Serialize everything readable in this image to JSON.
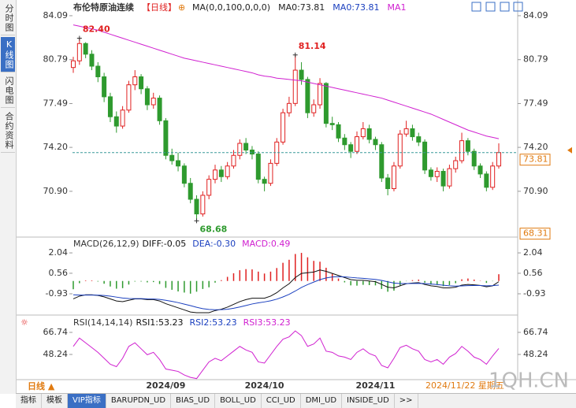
{
  "header": {
    "title": "布伦特原油连续",
    "period": "【日线】",
    "icon": "⊕",
    "texts": [
      {
        "text": "MA(0,0,100,0,0,0)",
        "color": "#222222"
      },
      {
        "text": "MA0:73.81",
        "color": "#222222"
      },
      {
        "text": "MA0:73.81",
        "color": "#1a3fbf"
      },
      {
        "text": "MA1",
        "color": "#d020d0"
      }
    ]
  },
  "sidebar": [
    "分时图",
    "K线图",
    "闪电图",
    "合约资料"
  ],
  "sidebar_active": "K线图",
  "chart_data": [
    {
      "type": "candlestick",
      "categories": [
        null,
        null,
        null,
        null,
        null,
        null,
        null,
        null,
        null,
        null,
        null,
        null,
        null,
        null,
        null,
        "2024/09",
        null,
        null,
        null,
        null,
        null,
        null,
        null,
        null,
        null,
        null,
        null,
        null,
        null,
        null,
        null,
        "2024/10",
        null,
        null,
        null,
        null,
        null,
        null,
        null,
        null,
        null,
        null,
        null,
        null,
        null,
        null,
        null,
        null,
        null,
        "2024/11",
        null,
        null,
        null,
        null,
        null,
        null,
        null,
        null,
        null,
        null,
        null,
        null,
        null,
        null,
        null,
        null,
        null,
        null,
        null,
        null
      ],
      "ohlc": [
        [
          80.2,
          81.0,
          79.8,
          80.7
        ],
        [
          80.7,
          82.4,
          80.4,
          82.0
        ],
        [
          82.0,
          82.1,
          80.9,
          81.2
        ],
        [
          81.2,
          81.5,
          80.0,
          80.3
        ],
        [
          80.3,
          80.6,
          79.1,
          79.5
        ],
        [
          79.5,
          79.8,
          77.6,
          78.0
        ],
        [
          78.0,
          78.3,
          76.1,
          76.5
        ],
        [
          76.5,
          76.9,
          75.3,
          75.8
        ],
        [
          75.8,
          77.3,
          75.6,
          77.0
        ],
        [
          77.0,
          79.2,
          76.8,
          78.9
        ],
        [
          78.9,
          80.0,
          78.5,
          79.5
        ],
        [
          79.5,
          79.7,
          78.2,
          78.6
        ],
        [
          78.6,
          78.8,
          77.0,
          77.4
        ],
        [
          77.4,
          78.3,
          77.1,
          77.9
        ],
        [
          77.9,
          78.1,
          75.9,
          76.2
        ],
        [
          76.2,
          76.4,
          73.3,
          73.6
        ],
        [
          73.6,
          74.1,
          72.9,
          73.2
        ],
        [
          73.2,
          73.8,
          72.4,
          72.8
        ],
        [
          72.8,
          73.0,
          71.2,
          71.5
        ],
        [
          71.5,
          71.9,
          70.0,
          70.3
        ],
        [
          70.3,
          70.6,
          68.68,
          69.2
        ],
        [
          69.2,
          70.9,
          69.0,
          70.6
        ],
        [
          70.6,
          72.1,
          70.3,
          71.8
        ],
        [
          71.8,
          72.9,
          71.5,
          72.5
        ],
        [
          72.5,
          72.8,
          71.6,
          72.0
        ],
        [
          72.0,
          73.1,
          71.8,
          72.8
        ],
        [
          72.8,
          74.0,
          72.6,
          73.6
        ],
        [
          73.6,
          74.8,
          73.3,
          74.5
        ],
        [
          74.5,
          74.9,
          73.7,
          74.0
        ],
        [
          74.0,
          74.3,
          73.3,
          73.7
        ],
        [
          73.7,
          73.9,
          71.5,
          71.8
        ],
        [
          71.8,
          72.0,
          70.9,
          71.5
        ],
        [
          71.5,
          73.3,
          71.3,
          73.0
        ],
        [
          73.0,
          74.9,
          72.8,
          74.6
        ],
        [
          74.6,
          77.1,
          74.4,
          76.8
        ],
        [
          76.8,
          78.0,
          76.5,
          77.5
        ],
        [
          77.5,
          81.14,
          77.3,
          80.0
        ],
        [
          80.0,
          80.6,
          78.9,
          79.3
        ],
        [
          79.3,
          79.5,
          76.4,
          76.8
        ],
        [
          76.8,
          77.8,
          76.5,
          77.4
        ],
        [
          77.4,
          79.4,
          77.1,
          79.0
        ],
        [
          79.0,
          79.1,
          75.7,
          76.0
        ],
        [
          76.0,
          76.5,
          75.5,
          75.9
        ],
        [
          75.9,
          76.1,
          74.6,
          74.9
        ],
        [
          74.9,
          75.2,
          74.0,
          74.4
        ],
        [
          74.4,
          74.6,
          73.4,
          73.9
        ],
        [
          73.9,
          75.4,
          73.7,
          75.0
        ],
        [
          75.0,
          76.1,
          74.8,
          75.6
        ],
        [
          75.6,
          75.9,
          74.5,
          74.8
        ],
        [
          74.8,
          75.0,
          74.0,
          74.4
        ],
        [
          74.4,
          74.6,
          71.6,
          71.9
        ],
        [
          71.9,
          72.2,
          70.6,
          71.1
        ],
        [
          71.1,
          73.1,
          70.9,
          72.8
        ],
        [
          72.8,
          75.5,
          72.6,
          75.2
        ],
        [
          75.2,
          76.2,
          75.0,
          75.6
        ],
        [
          75.6,
          75.9,
          74.7,
          75.0
        ],
        [
          75.0,
          75.3,
          74.3,
          74.6
        ],
        [
          74.6,
          74.8,
          72.2,
          72.5
        ],
        [
          72.5,
          72.7,
          71.7,
          72.0
        ],
        [
          72.0,
          72.7,
          71.6,
          72.4
        ],
        [
          72.4,
          72.6,
          70.9,
          71.3
        ],
        [
          71.3,
          72.9,
          71.1,
          72.6
        ],
        [
          72.6,
          73.5,
          72.3,
          73.2
        ],
        [
          73.2,
          75.3,
          73.0,
          74.7
        ],
        [
          74.7,
          74.9,
          73.6,
          73.9
        ],
        [
          73.9,
          74.1,
          72.5,
          72.8
        ],
        [
          72.8,
          73.0,
          71.9,
          72.2
        ],
        [
          72.2,
          72.4,
          70.9,
          71.2
        ],
        [
          71.2,
          73.1,
          71.0,
          72.8
        ],
        [
          72.8,
          74.5,
          72.6,
          73.81
        ]
      ],
      "up_color": "#e02020",
      "down_color": "#2e9a2e",
      "ma": {
        "name": "MA1",
        "color": "#d020d0",
        "values": [
          83.4,
          83.3,
          83.2,
          83.1,
          83.0,
          82.85,
          82.7,
          82.55,
          82.4,
          82.25,
          82.1,
          81.95,
          81.8,
          81.65,
          81.5,
          81.35,
          81.2,
          81.05,
          80.9,
          80.8,
          80.7,
          80.6,
          80.5,
          80.4,
          80.3,
          80.2,
          80.1,
          80.0,
          79.9,
          79.8,
          79.65,
          79.55,
          79.5,
          79.4,
          79.35,
          79.3,
          79.25,
          79.2,
          79.1,
          79.0,
          78.9,
          78.8,
          78.7,
          78.6,
          78.5,
          78.4,
          78.3,
          78.2,
          78.1,
          78.0,
          77.9,
          77.75,
          77.6,
          77.45,
          77.3,
          77.15,
          77.0,
          76.85,
          76.7,
          76.5,
          76.3,
          76.1,
          75.9,
          75.7,
          75.5,
          75.35,
          75.2,
          75.05,
          74.95,
          74.85
        ]
      },
      "annotations": [
        {
          "value": 82.4,
          "label": "82.40"
        },
        {
          "value": 81.14,
          "label": "81.14"
        },
        {
          "value": 68.68,
          "label": "68.68"
        }
      ],
      "last_price": 73.81,
      "range_low": 68.31,
      "ylim": [
        67.52,
        84.56
      ],
      "yticks": [
        84.09,
        80.79,
        77.49,
        {
          "value": 74.2,
          "label": "74.20"
        },
        {
          "value": 70.9,
          "label": "70.90"
        }
      ]
    },
    {
      "type": "macd",
      "title": "MACD(26,12,9)",
      "series": [
        {
          "name": "DIFF",
          "legend": "DIFF:-0.05",
          "color": "#111111",
          "values": [
            -1.3,
            -1.1,
            -1.0,
            -1.0,
            -1.05,
            -1.15,
            -1.3,
            -1.45,
            -1.5,
            -1.4,
            -1.3,
            -1.3,
            -1.35,
            -1.35,
            -1.45,
            -1.65,
            -1.8,
            -1.95,
            -2.1,
            -2.25,
            -2.3,
            -2.3,
            -2.3,
            -2.15,
            -2.05,
            -1.9,
            -1.7,
            -1.5,
            -1.35,
            -1.25,
            -1.25,
            -1.25,
            -1.1,
            -0.85,
            -0.5,
            -0.2,
            0.25,
            0.55,
            0.6,
            0.65,
            0.8,
            0.7,
            0.55,
            0.4,
            0.25,
            0.1,
            0.05,
            0.05,
            0.0,
            -0.05,
            -0.25,
            -0.45,
            -0.5,
            -0.35,
            -0.2,
            -0.15,
            -0.12,
            -0.25,
            -0.35,
            -0.4,
            -0.5,
            -0.5,
            -0.45,
            -0.3,
            -0.25,
            -0.28,
            -0.32,
            -0.42,
            -0.35,
            -0.05
          ]
        },
        {
          "name": "DEA",
          "legend": "DEA:-0.30",
          "color": "#1a3fbf",
          "values": [
            -1.0,
            -1.02,
            -1.02,
            -1.02,
            -1.03,
            -1.05,
            -1.1,
            -1.17,
            -1.24,
            -1.27,
            -1.28,
            -1.28,
            -1.3,
            -1.31,
            -1.34,
            -1.4,
            -1.48,
            -1.57,
            -1.68,
            -1.79,
            -1.91,
            -2.01,
            -2.07,
            -2.09,
            -2.08,
            -2.05,
            -1.98,
            -1.89,
            -1.78,
            -1.67,
            -1.59,
            -1.52,
            -1.44,
            -1.32,
            -1.16,
            -0.97,
            -0.73,
            -0.47,
            -0.26,
            -0.08,
            0.1,
            0.22,
            0.29,
            0.31,
            0.3,
            0.26,
            0.22,
            0.19,
            0.15,
            0.11,
            0.04,
            -0.06,
            -0.15,
            -0.19,
            -0.19,
            -0.18,
            -0.17,
            -0.19,
            -0.22,
            -0.26,
            -0.31,
            -0.35,
            -0.37,
            -0.36,
            -0.34,
            -0.33,
            -0.33,
            -0.35,
            -0.34,
            -0.3
          ]
        }
      ],
      "hist": {
        "name": "MACD",
        "legend": "MACD:0.49",
        "color": "#d020d0",
        "up_color": "#e02020",
        "down_color": "#2e9a2e",
        "values": [
          -0.6,
          -0.16,
          0.04,
          0.04,
          -0.04,
          -0.2,
          -0.4,
          -0.56,
          -0.52,
          -0.26,
          -0.04,
          -0.04,
          -0.1,
          -0.08,
          -0.22,
          -0.5,
          -0.64,
          -0.76,
          -0.84,
          -0.92,
          -0.78,
          -0.58,
          -0.46,
          -0.12,
          0.06,
          0.3,
          0.56,
          0.78,
          0.86,
          0.84,
          0.68,
          0.54,
          0.68,
          0.94,
          1.32,
          1.54,
          1.96,
          2.04,
          1.72,
          1.46,
          1.4,
          0.96,
          0.52,
          0.18,
          -0.1,
          -0.32,
          -0.34,
          -0.28,
          -0.3,
          -0.32,
          -0.58,
          -0.78,
          -0.7,
          -0.32,
          -0.02,
          0.06,
          0.1,
          -0.12,
          -0.26,
          -0.28,
          -0.38,
          -0.3,
          -0.16,
          0.12,
          0.18,
          0.1,
          0.02,
          -0.14,
          -0.02,
          0.49
        ]
      },
      "ylim": [
        -2.36,
        3.13
      ],
      "yticks": [
        2.04,
        0.56,
        -0.93
      ]
    },
    {
      "type": "line",
      "title": "RSI(14,14,14)",
      "legend": [
        {
          "text": "RSI1:53.23",
          "color": "#111111"
        },
        {
          "text": "RSI2:53.23",
          "color": "#1a3fbf"
        },
        {
          "text": "RSI3:53.23",
          "color": "#d020d0"
        }
      ],
      "color": "#d020d0",
      "values": [
        55,
        62,
        58,
        54,
        50,
        45,
        40,
        38,
        45,
        55,
        58,
        53,
        48,
        50,
        44,
        36,
        35,
        34,
        31,
        29,
        28,
        35,
        42,
        45,
        43,
        47,
        51,
        55,
        52,
        50,
        42,
        41,
        48,
        55,
        61,
        63,
        68,
        64,
        55,
        57,
        62,
        51,
        50,
        47,
        46,
        44,
        50,
        53,
        49,
        47,
        39,
        37,
        45,
        54,
        56,
        53,
        51,
        44,
        42,
        44,
        40,
        46,
        49,
        55,
        51,
        46,
        44,
        40,
        47,
        53.23
      ],
      "ylim": [
        27.1,
        79.96
      ],
      "yticks": [
        66.74,
        48.24
      ]
    }
  ],
  "footer": {
    "period_button": "日线 ▲",
    "date": "2024/11/22 星期五",
    "watermark": "1QH.CN",
    "tabs": [
      "指标",
      "模板",
      "VIP指标",
      "BARUPDN_UD",
      "BIAS_UD",
      "BOLL_UD",
      "CCI_UD",
      "DMI_UD",
      "INSIDE_UD",
      ">>"
    ],
    "active_tab": "VIP指标"
  }
}
